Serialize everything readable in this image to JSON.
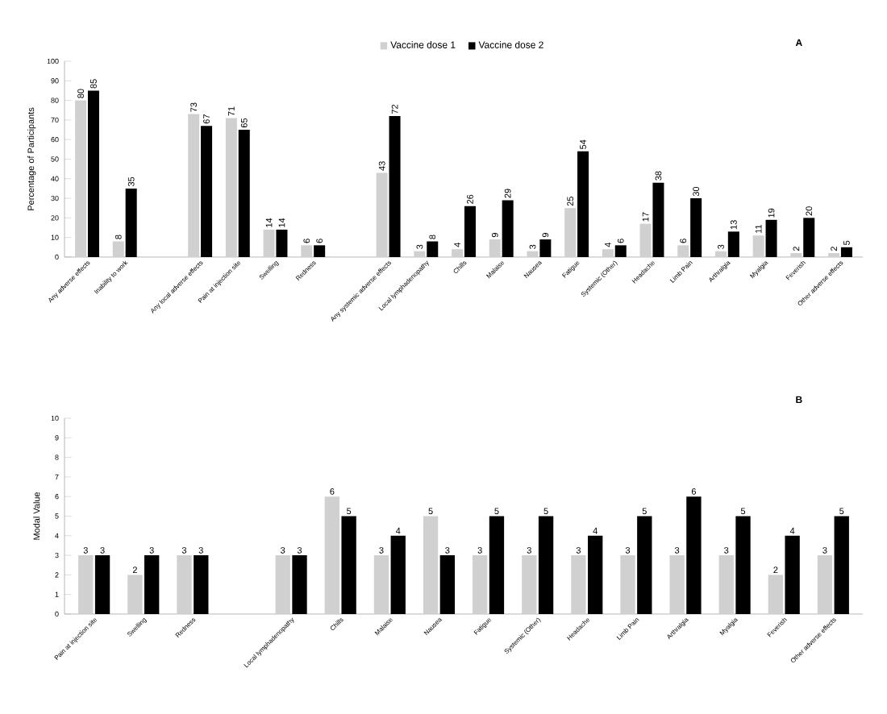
{
  "chart_data": [
    {
      "type": "bar",
      "title": "A",
      "ylabel": "Percentage of Participants",
      "categories": [
        "Any adverse effects",
        "Inability to work",
        null,
        "Any local adverse effects",
        "Pain at injection site",
        "Swelling",
        "Redness",
        null,
        "Any systemic adverse effects",
        "Local lymphadenopathy",
        "Chills",
        "Malaise",
        "Nausea",
        "Fatigue",
        "Systemic (Other)",
        "Headache",
        "Limb Pain",
        "Arthralgia",
        "Myalgia",
        "Feverish",
        "Other adverse effects"
      ],
      "series": [
        {
          "name": "Vaccine dose 1",
          "color": "#d0d0d0",
          "values": [
            80,
            8,
            null,
            73,
            71,
            14,
            6,
            null,
            43,
            3,
            4,
            9,
            3,
            25,
            4,
            17,
            6,
            3,
            11,
            2,
            2
          ]
        },
        {
          "name": "Vaccine dose 2",
          "color": "#000000",
          "values": [
            85,
            35,
            null,
            67,
            65,
            14,
            6,
            null,
            72,
            8,
            26,
            29,
            9,
            54,
            6,
            38,
            30,
            13,
            19,
            20,
            5
          ]
        }
      ],
      "ylim": [
        0,
        100
      ],
      "yticks": [
        0,
        10,
        20,
        30,
        40,
        50,
        60,
        70,
        80,
        90,
        100
      ],
      "data_labels": true,
      "legend": "top",
      "grid": false
    },
    {
      "type": "bar",
      "title": "B",
      "ylabel": "Modal Value",
      "categories": [
        "Pain at injection site",
        "Swelling",
        "Redness",
        null,
        "Local lymphadenopathy",
        "Chills",
        "Malaise",
        "Nausea",
        "Fatigue",
        "Systemic (Other)",
        "Headache",
        "Limb Pain",
        "Arthralgia",
        "Myalgia",
        "Feverish",
        "Other adverse effects"
      ],
      "series": [
        {
          "color": "#d0d0d0",
          "values": [
            3,
            2,
            3,
            null,
            3,
            6,
            3,
            5,
            3,
            3,
            3,
            3,
            3,
            3,
            2,
            3
          ]
        },
        {
          "color": "#000000",
          "values": [
            3,
            3,
            3,
            null,
            3,
            5,
            4,
            3,
            5,
            5,
            4,
            5,
            6,
            5,
            4,
            5
          ]
        }
      ],
      "ylim": [
        0,
        10
      ],
      "yticks": [
        0,
        1,
        2,
        3,
        4,
        5,
        6,
        7,
        8,
        9,
        10
      ],
      "data_labels": true,
      "legend": false,
      "grid": false
    }
  ]
}
